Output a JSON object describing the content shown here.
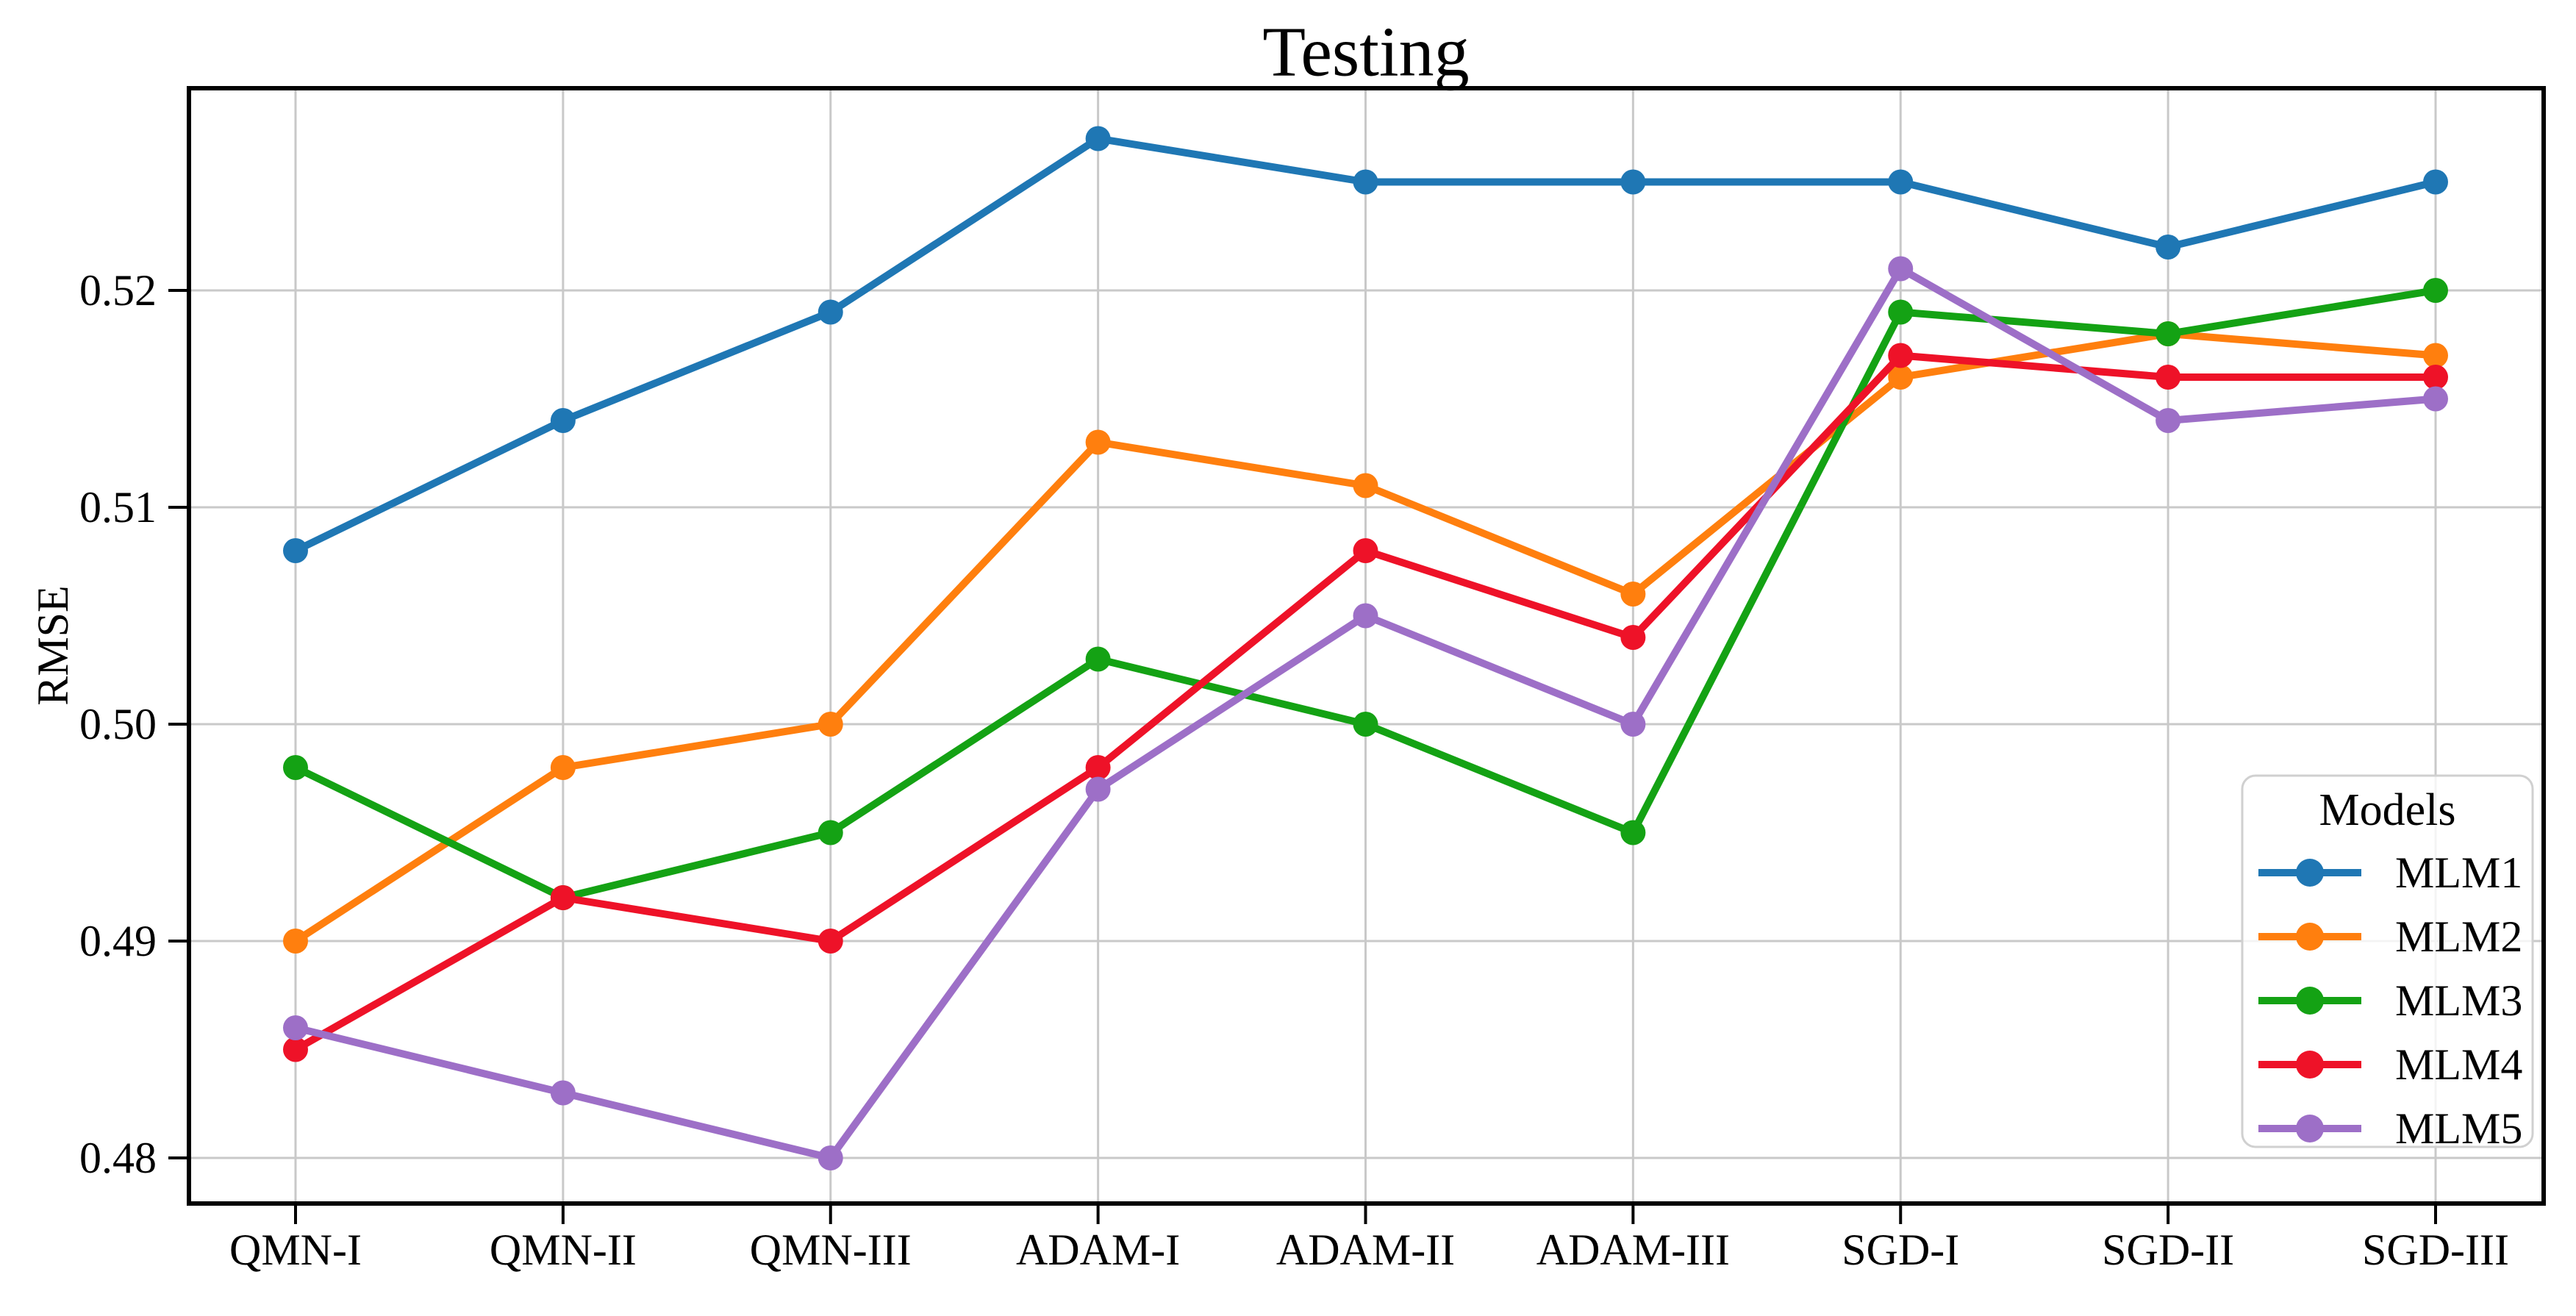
{
  "chart_data": {
    "type": "line",
    "title": "Testing",
    "xlabel": "",
    "ylabel": "RMSE",
    "categories": [
      "QMN-I",
      "QMN-II",
      "QMN-III",
      "ADAM-I",
      "ADAM-II",
      "ADAM-III",
      "SGD-I",
      "SGD-II",
      "SGD-III"
    ],
    "series": [
      {
        "name": "MLM1",
        "color": "#1f77b4",
        "values": [
          0.508,
          0.514,
          0.519,
          0.527,
          0.525,
          0.525,
          0.525,
          0.522,
          0.525
        ]
      },
      {
        "name": "MLM2",
        "color": "#ff7f0e",
        "values": [
          0.49,
          0.498,
          0.5,
          0.513,
          0.511,
          0.506,
          0.516,
          0.518,
          0.517
        ]
      },
      {
        "name": "MLM3",
        "color": "#14a214",
        "values": [
          0.498,
          0.492,
          0.495,
          0.503,
          0.5,
          0.495,
          0.519,
          0.518,
          0.52
        ]
      },
      {
        "name": "MLM4",
        "color": "#ee1228",
        "values": [
          0.485,
          0.492,
          0.49,
          0.498,
          0.508,
          0.504,
          0.517,
          0.516,
          0.516
        ]
      },
      {
        "name": "MLM5",
        "color": "#9d6fc7",
        "values": [
          0.486,
          0.483,
          0.48,
          0.497,
          0.505,
          0.5,
          0.521,
          0.514,
          0.515
        ]
      }
    ],
    "y_ticks": [
      "0.48",
      "0.49",
      "0.50",
      "0.51",
      "0.52"
    ],
    "y_tick_values": [
      0.48,
      0.49,
      0.5,
      0.51,
      0.52
    ],
    "ylim": [
      0.4778,
      0.5293
    ],
    "grid": true,
    "grid_color": "#c9c9c9",
    "axis_color": "#000000",
    "legend": {
      "title": "Models",
      "position": "lower right",
      "entries": [
        "MLM1",
        "MLM2",
        "MLM3",
        "MLM4",
        "MLM5"
      ]
    }
  }
}
